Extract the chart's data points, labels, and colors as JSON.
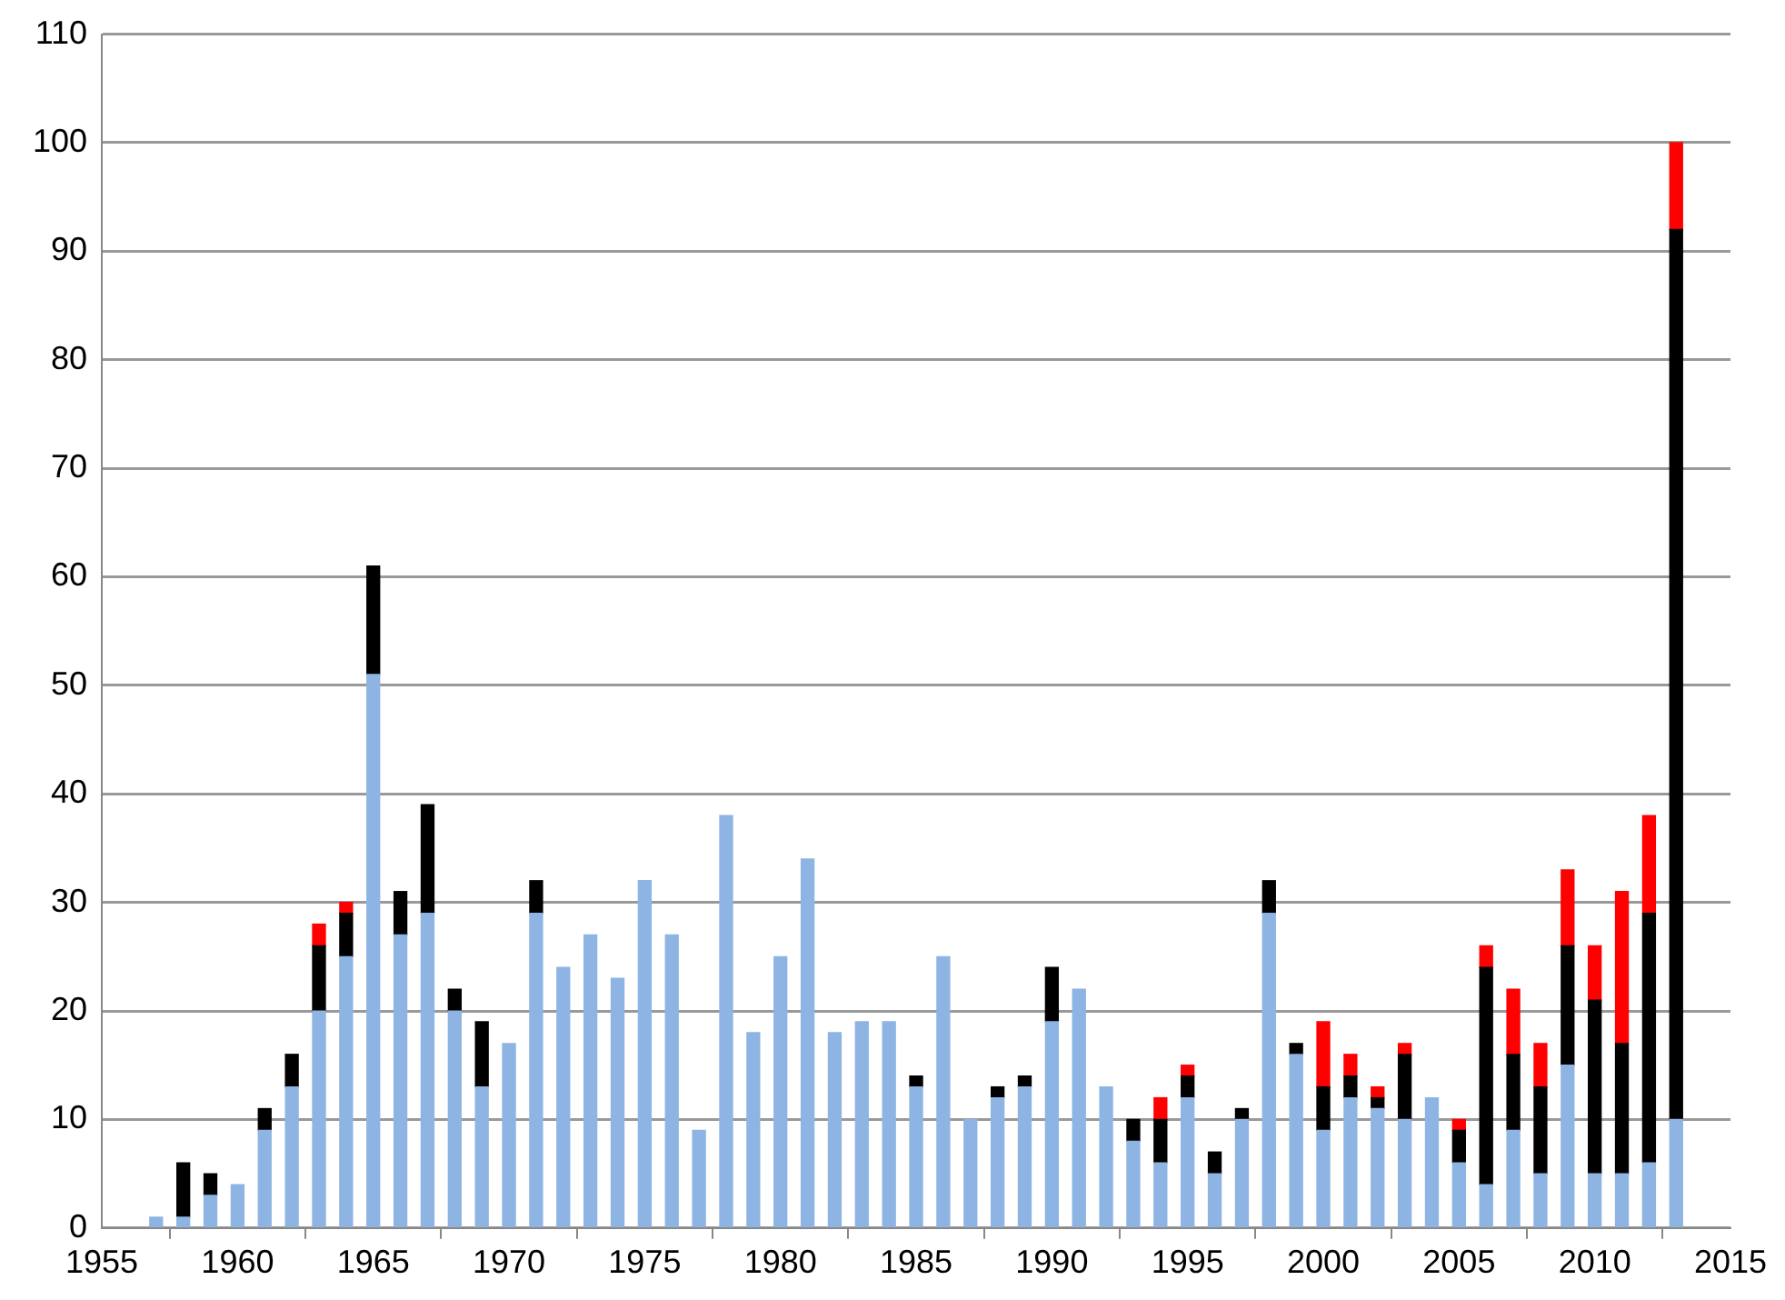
{
  "chart_data": {
    "type": "bar",
    "stacked": true,
    "x": [
      1957,
      1958,
      1959,
      1960,
      1961,
      1962,
      1963,
      1964,
      1965,
      1966,
      1967,
      1968,
      1969,
      1970,
      1971,
      1972,
      1973,
      1974,
      1975,
      1976,
      1977,
      1978,
      1979,
      1980,
      1981,
      1982,
      1983,
      1984,
      1985,
      1986,
      1987,
      1988,
      1989,
      1990,
      1991,
      1992,
      1993,
      1994,
      1995,
      1996,
      1997,
      1998,
      1999,
      2000,
      2001,
      2002,
      2003,
      2004,
      2005,
      2006,
      2007,
      2008,
      2009,
      2010,
      2011,
      2012,
      2013
    ],
    "series": [
      {
        "color": "#8eb4e3",
        "values": [
          1,
          1,
          3,
          4,
          9,
          13,
          20,
          25,
          51,
          27,
          29,
          20,
          13,
          17,
          29,
          24,
          27,
          23,
          32,
          27,
          9,
          38,
          18,
          25,
          34,
          18,
          19,
          19,
          13,
          25,
          10,
          12,
          13,
          19,
          22,
          13,
          8,
          6,
          12,
          5,
          10,
          29,
          16,
          9,
          12,
          11,
          10,
          12,
          6,
          4,
          9,
          5,
          15,
          5,
          5,
          6,
          10
        ]
      },
      {
        "color": "#000000",
        "values": [
          null,
          5,
          2,
          null,
          2,
          3,
          6,
          4,
          10,
          4,
          10,
          2,
          6,
          null,
          3,
          null,
          null,
          null,
          null,
          null,
          null,
          null,
          null,
          null,
          null,
          null,
          null,
          null,
          1,
          null,
          null,
          1,
          1,
          5,
          null,
          null,
          2,
          4,
          2,
          2,
          1,
          3,
          1,
          4,
          2,
          1,
          6,
          null,
          3,
          20,
          7,
          8,
          11,
          16,
          12,
          23,
          82
        ]
      },
      {
        "color": "#ff0000",
        "values": [
          null,
          null,
          null,
          null,
          null,
          null,
          2,
          1,
          null,
          null,
          null,
          null,
          null,
          null,
          null,
          null,
          null,
          null,
          null,
          null,
          null,
          null,
          null,
          null,
          null,
          null,
          null,
          null,
          null,
          null,
          null,
          null,
          null,
          null,
          null,
          null,
          null,
          2,
          1,
          null,
          null,
          null,
          null,
          6,
          2,
          1,
          1,
          null,
          1,
          2,
          6,
          4,
          7,
          5,
          14,
          9,
          8
        ]
      }
    ],
    "xlim": [
      1955,
      2015
    ],
    "xticks": [
      1955,
      1960,
      1965,
      1970,
      1975,
      1980,
      1985,
      1990,
      1995,
      2000,
      2005,
      2010,
      2015
    ],
    "ylim": [
      0,
      110
    ],
    "yticks": [
      0,
      10,
      20,
      30,
      40,
      50,
      60,
      70,
      80,
      90,
      100,
      110
    ],
    "grid": "y",
    "legend": false
  }
}
